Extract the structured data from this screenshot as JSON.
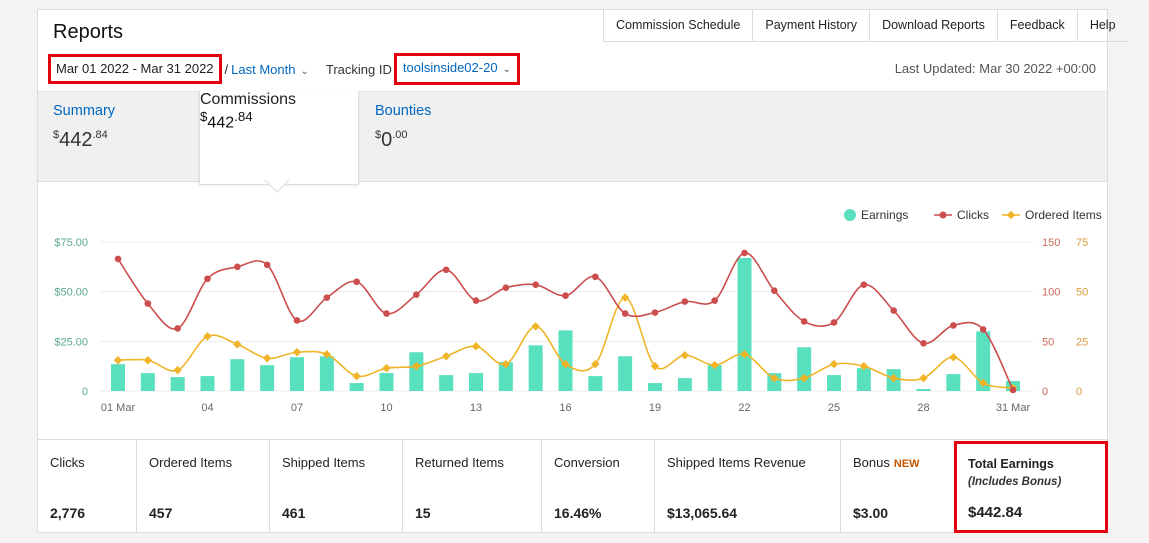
{
  "header": {
    "title": "Reports",
    "nav": [
      "Commission Schedule",
      "Payment History",
      "Download Reports",
      "Feedback",
      "Help"
    ]
  },
  "filters": {
    "date_range": "Mar 01 2022 - Mar 31 2022",
    "separator": "/",
    "period": "Last Month",
    "tracking_label": "Tracking ID",
    "tracking_id": "toolsinside02-20",
    "last_updated": "Last Updated: Mar 30 2022 +00:00"
  },
  "tabs": {
    "summary": {
      "label": "Summary",
      "dollar": "$",
      "whole": "442",
      "cents": ".84"
    },
    "commissions": {
      "label": "Commissions",
      "dollar": "$",
      "whole": "442",
      "cents": ".84"
    },
    "bounties": {
      "label": "Bounties",
      "dollar": "$",
      "whole": "0",
      "cents": ".00"
    }
  },
  "chart_data": {
    "type": "bar+line",
    "legend": [
      "Earnings",
      "Clicks",
      "Ordered Items"
    ],
    "legend_placement": "top-right",
    "colors": {
      "earnings": "#58e0bf",
      "clicks": "#cc4d4d",
      "ordered_items": "#f0b429"
    },
    "x_ticks": [
      "01 Mar",
      "04",
      "07",
      "10",
      "13",
      "16",
      "19",
      "22",
      "25",
      "28",
      "31 Mar"
    ],
    "x_tick_days": [
      1,
      4,
      7,
      10,
      13,
      16,
      19,
      22,
      25,
      28,
      31
    ],
    "y_left_ticks": [
      "$75.00",
      "$50.00",
      "$25.00",
      "0"
    ],
    "y_right_clicks_ticks": [
      "150",
      "100",
      "50",
      "0"
    ],
    "y_right_items_ticks": [
      "75",
      "50",
      "25",
      "0"
    ],
    "ylim_earnings": [
      0,
      75
    ],
    "ylim_clicks": [
      0,
      150
    ],
    "ylim_items": [
      0,
      75
    ],
    "days": [
      1,
      2,
      3,
      4,
      5,
      6,
      7,
      8,
      9,
      10,
      11,
      12,
      13,
      14,
      15,
      16,
      17,
      18,
      19,
      20,
      21,
      22,
      23,
      24,
      25,
      26,
      27,
      28,
      29,
      30,
      31
    ],
    "series": [
      {
        "name": "Earnings",
        "values": [
          13.5,
          9,
          7,
          7.5,
          16,
          13,
          17,
          17.5,
          4,
          9,
          19.5,
          8,
          9,
          14.5,
          23,
          30.5,
          7.5,
          17.5,
          4,
          6.5,
          13,
          67,
          9,
          22,
          8,
          11.5,
          11,
          1,
          8.5,
          30,
          5
        ]
      },
      {
        "name": "Clicks",
        "values": [
          133,
          88,
          63,
          113,
          125,
          127,
          71,
          94,
          110,
          78,
          97,
          122,
          91,
          104,
          107,
          96,
          115,
          78,
          79,
          90,
          91,
          139,
          101,
          70,
          69,
          107,
          81,
          48,
          66,
          62,
          1
        ]
      },
      {
        "name": "Ordered Items",
        "values": [
          15.5,
          15.5,
          10.5,
          27.5,
          23.5,
          16.5,
          19.5,
          18.5,
          7.5,
          11.5,
          12.5,
          17.5,
          22.5,
          13.5,
          32.5,
          13.5,
          13.5,
          47,
          12.5,
          18,
          13,
          18.5,
          6.5,
          6.5,
          13.5,
          12.5,
          6.5,
          6.5,
          17,
          4,
          1.5
        ]
      }
    ]
  },
  "stats": {
    "clicks": {
      "label": "Clicks",
      "value": "2,776"
    },
    "ordered": {
      "label": "Ordered Items",
      "value": "457"
    },
    "shipped": {
      "label": "Shipped Items",
      "value": "461"
    },
    "returned": {
      "label": "Returned Items",
      "value": "15"
    },
    "conversion": {
      "label": "Conversion",
      "value": "16.46%"
    },
    "revenue": {
      "label": "Shipped Items Revenue",
      "value": "$13,065.64"
    },
    "bonus": {
      "label": "Bonus",
      "badge": "NEW",
      "value": "$3.00"
    },
    "total": {
      "label": "Total Earnings",
      "sublabel": "(Includes Bonus)",
      "value": "$442.84"
    }
  }
}
